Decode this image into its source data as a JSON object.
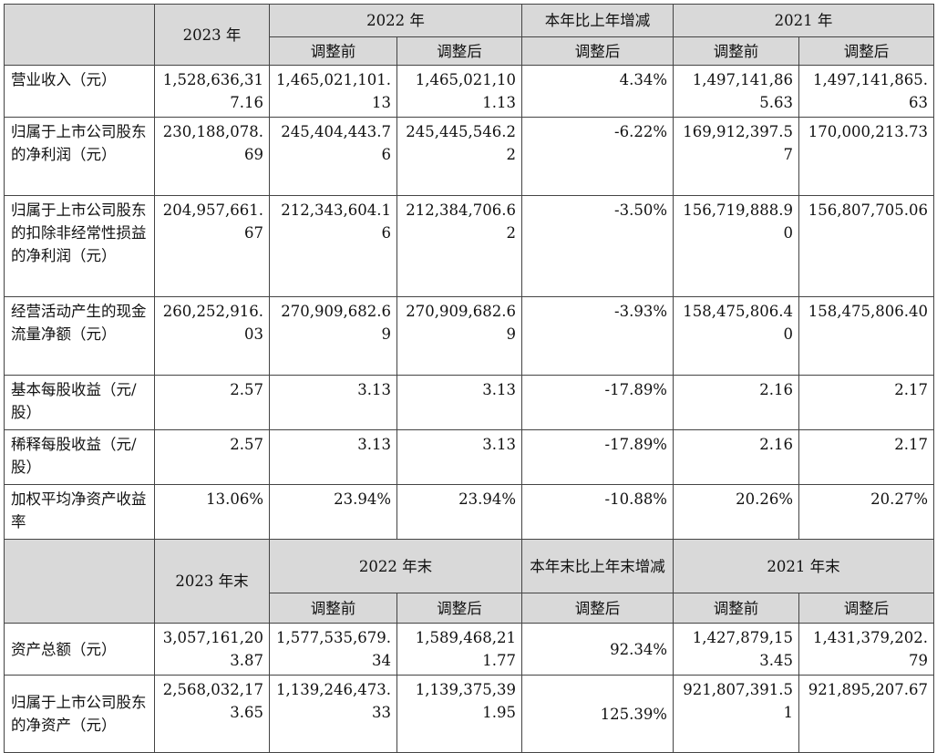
{
  "income_section": {
    "header": {
      "year_2023": "2023 年",
      "year_2022": "2022 年",
      "change": "本年比上年增减",
      "year_2021": "2021 年",
      "before_adj": "调整前",
      "after_adj": "调整后"
    },
    "rows": [
      {
        "label": "营业收入（元）",
        "v2023": "1,528,636,317.16",
        "v2022_before": "1,465,021,101.13",
        "v2022_after": "1,465,021,101.13",
        "change": "4.34%",
        "v2021_before": "1,497,141,865.63",
        "v2021_after": "1,497,141,865.63"
      },
      {
        "label": "归属于上市公司股东的净利润（元）",
        "v2023": "230,188,078.69",
        "v2022_before": "245,404,443.76",
        "v2022_after": "245,445,546.22",
        "change": "-6.22%",
        "v2021_before": "169,912,397.57",
        "v2021_after": "170,000,213.73"
      },
      {
        "label": "归属于上市公司股东的扣除非经常性损益的净利润（元）",
        "v2023": "204,957,661.67",
        "v2022_before": "212,343,604.16",
        "v2022_after": "212,384,706.62",
        "change": "-3.50%",
        "v2021_before": "156,719,888.90",
        "v2021_after": "156,807,705.06"
      },
      {
        "label": "经营活动产生的现金流量净额（元）",
        "v2023": "260,252,916.03",
        "v2022_before": "270,909,682.69",
        "v2022_after": "270,909,682.69",
        "change": "-3.93%",
        "v2021_before": "158,475,806.40",
        "v2021_after": "158,475,806.40"
      },
      {
        "label": "基本每股收益（元/股）",
        "v2023": "2.57",
        "v2022_before": "3.13",
        "v2022_after": "3.13",
        "change": "-17.89%",
        "v2021_before": "2.16",
        "v2021_after": "2.17"
      },
      {
        "label": "稀释每股收益（元/股）",
        "v2023": "2.57",
        "v2022_before": "3.13",
        "v2022_after": "3.13",
        "change": "-17.89%",
        "v2021_before": "2.16",
        "v2021_after": "2.17"
      },
      {
        "label": "加权平均净资产收益率",
        "v2023": "13.06%",
        "v2022_before": "23.94%",
        "v2022_after": "23.94%",
        "change": "-10.88%",
        "v2021_before": "20.26%",
        "v2021_after": "20.27%"
      }
    ]
  },
  "balance_section": {
    "header": {
      "year_2023": "2023 年末",
      "year_2022": "2022 年末",
      "change": "本年末比上年末增减",
      "year_2021": "2021 年末",
      "before_adj": "调整前",
      "after_adj": "调整后"
    },
    "rows": [
      {
        "label": "资产总额（元）",
        "v2023": "3,057,161,203.87",
        "v2022_before": "1,577,535,679.34",
        "v2022_after": "1,589,468,211.77",
        "change": "92.34%",
        "v2021_before": "1,427,879,153.45",
        "v2021_after": "1,431,379,202.79"
      },
      {
        "label": "归属于上市公司股东的净资产（元）",
        "v2023": "2,568,032,173.65",
        "v2022_before": "1,139,246,473.33",
        "v2022_after": "1,139,375,391.95",
        "change": "125.39%",
        "v2021_before": "921,807,391.51",
        "v2021_after": "921,895,207.67"
      }
    ]
  }
}
